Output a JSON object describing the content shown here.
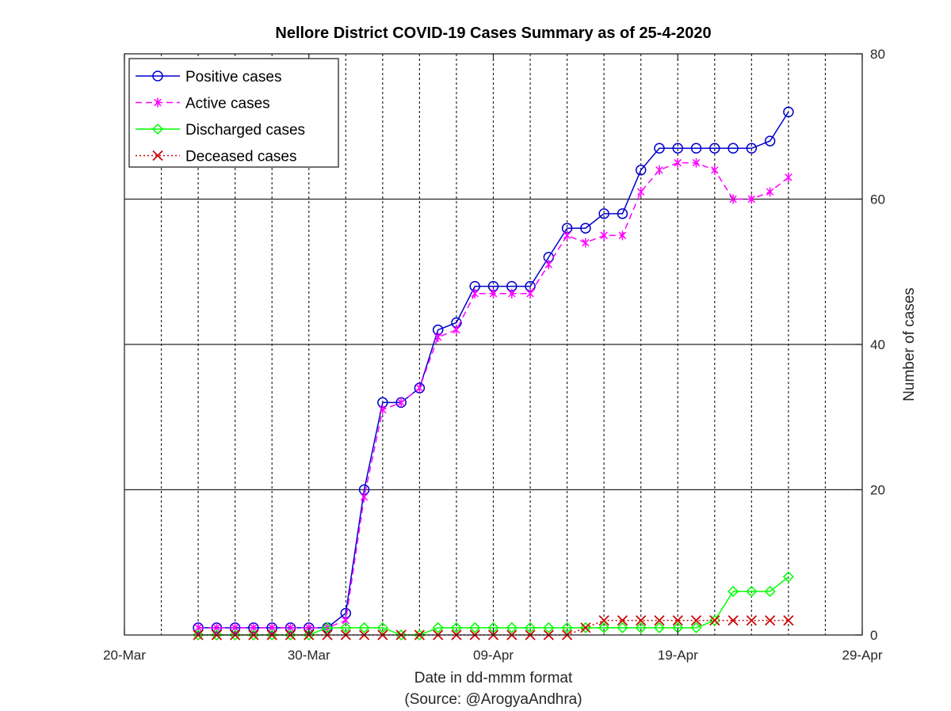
{
  "chart_data": {
    "type": "line",
    "title": "Nellore District COVID-19 Cases Summary as of 25-4-2020",
    "xlabel": "Date in dd-mmm format",
    "xlabel_source": "(Source: @ArogyaAndhra)",
    "ylabel": "Number of cases",
    "xlim": [
      "2020-03-20",
      "2020-04-29"
    ],
    "ylim": [
      0,
      80
    ],
    "x_ticks": [
      {
        "date": "2020-03-20",
        "label": "20-Mar"
      },
      {
        "date": "2020-03-30",
        "label": "30-Mar"
      },
      {
        "date": "2020-04-09",
        "label": "09-Apr"
      },
      {
        "date": "2020-04-19",
        "label": "19-Apr"
      },
      {
        "date": "2020-04-29",
        "label": "29-Apr"
      }
    ],
    "y_ticks": [
      0,
      20,
      40,
      60,
      80
    ],
    "y_axis_side": "right",
    "grid": "on",
    "legend_position": "top-left",
    "x": [
      "2020-03-24",
      "2020-03-25",
      "2020-03-26",
      "2020-03-27",
      "2020-03-28",
      "2020-03-29",
      "2020-03-30",
      "2020-03-31",
      "2020-04-01",
      "2020-04-02",
      "2020-04-03",
      "2020-04-04",
      "2020-04-05",
      "2020-04-06",
      "2020-04-07",
      "2020-04-08",
      "2020-04-09",
      "2020-04-10",
      "2020-04-11",
      "2020-04-12",
      "2020-04-13",
      "2020-04-14",
      "2020-04-15",
      "2020-04-16",
      "2020-04-17",
      "2020-04-18",
      "2020-04-19",
      "2020-04-20",
      "2020-04-21",
      "2020-04-22",
      "2020-04-23",
      "2020-04-24",
      "2020-04-25"
    ],
    "series": [
      {
        "name": "Positive cases",
        "color": "#0000cc",
        "marker": "circle",
        "linestyle": "solid",
        "values": [
          1,
          1,
          1,
          1,
          1,
          1,
          1,
          1,
          3,
          20,
          32,
          32,
          34,
          42,
          43,
          48,
          48,
          48,
          48,
          52,
          56,
          56,
          58,
          58,
          64,
          67,
          67,
          67,
          67,
          67,
          67,
          68,
          72
        ]
      },
      {
        "name": "Active cases",
        "color": "#ff00ff",
        "marker": "asterisk",
        "linestyle": "dashed",
        "values": [
          1,
          1,
          1,
          1,
          1,
          1,
          1,
          1,
          2,
          19,
          31,
          32,
          34,
          41,
          42,
          47,
          47,
          47,
          47,
          51,
          55,
          54,
          55,
          55,
          61,
          64,
          65,
          65,
          64,
          60,
          60,
          61,
          63
        ]
      },
      {
        "name": "Discharged cases",
        "color": "#00ff00",
        "marker": "diamond",
        "linestyle": "solid",
        "values": [
          0,
          0,
          0,
          0,
          0,
          0,
          0,
          1,
          1,
          1,
          1,
          0,
          0,
          1,
          1,
          1,
          1,
          1,
          1,
          1,
          1,
          1,
          1,
          1,
          1,
          1,
          1,
          1,
          2,
          6,
          6,
          6,
          8
        ]
      },
      {
        "name": "Deceased cases",
        "color": "#cc0000",
        "marker": "x",
        "linestyle": "dotted",
        "values": [
          0,
          0,
          0,
          0,
          0,
          0,
          0,
          0,
          0,
          0,
          0,
          0,
          0,
          0,
          0,
          0,
          0,
          0,
          0,
          0,
          0,
          1,
          2,
          2,
          2,
          2,
          2,
          2,
          2,
          2,
          2,
          2,
          2
        ]
      }
    ]
  }
}
